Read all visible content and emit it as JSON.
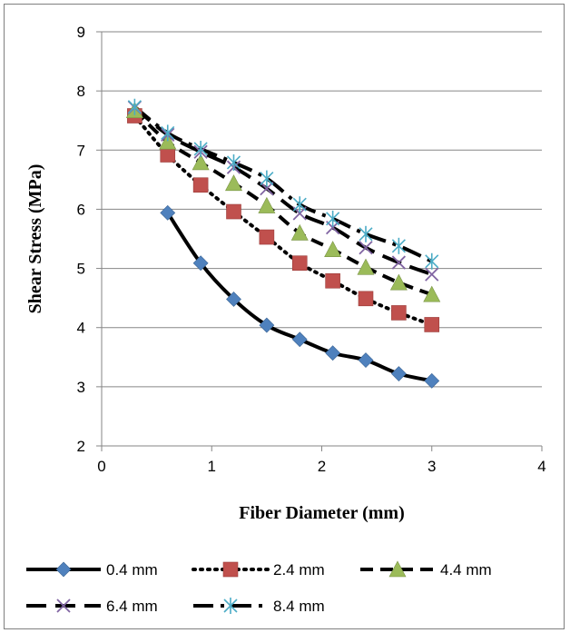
{
  "chart_data": {
    "type": "line",
    "title": "",
    "xlabel": "Fiber Diameter (mm)",
    "ylabel": "Shear Stress (MPa)",
    "xlim": [
      0,
      4
    ],
    "ylim": [
      2,
      9
    ],
    "x_ticks": [
      "0",
      "1",
      "2",
      "3",
      "4"
    ],
    "y_ticks": [
      "2",
      "3",
      "4",
      "5",
      "6",
      "7",
      "8",
      "9"
    ],
    "grid": "horizontal",
    "legend_position": "bottom",
    "series": [
      {
        "name": "0.4 mm",
        "color": "#4f81bd",
        "marker": "diamond",
        "dash": "solid",
        "x": [
          0.6,
          0.9,
          1.2,
          1.5,
          1.8,
          2.1,
          2.4,
          2.7,
          3.0
        ],
        "y": [
          5.94,
          5.09,
          4.48,
          4.04,
          3.8,
          3.57,
          3.45,
          3.22,
          3.1
        ]
      },
      {
        "name": "2.4 mm",
        "color": "#c0504d",
        "marker": "square",
        "dash": "dot",
        "x": [
          0.3,
          0.6,
          0.9,
          1.2,
          1.5,
          1.8,
          2.1,
          2.4,
          2.7,
          3.0
        ],
        "y": [
          7.58,
          6.92,
          6.41,
          5.96,
          5.53,
          5.09,
          4.79,
          4.49,
          4.25,
          4.05
        ]
      },
      {
        "name": "4.4 mm",
        "color": "#9bbb59",
        "marker": "triangle",
        "dash": "dash",
        "x": [
          0.3,
          0.6,
          0.9,
          1.2,
          1.5,
          1.8,
          2.1,
          2.4,
          2.7,
          3.0
        ],
        "y": [
          7.67,
          7.14,
          6.79,
          6.44,
          6.06,
          5.6,
          5.32,
          5.02,
          4.76,
          4.56
        ]
      },
      {
        "name": "6.4 mm",
        "color": "#8064a2",
        "marker": "x",
        "dash": "longdash",
        "x": [
          0.3,
          0.6,
          0.9,
          1.2,
          1.5,
          1.8,
          2.1,
          2.4,
          2.7,
          3.0
        ],
        "y": [
          7.72,
          7.26,
          6.97,
          6.71,
          6.35,
          5.93,
          5.69,
          5.35,
          5.1,
          4.9
        ]
      },
      {
        "name": "8.4 mm",
        "color": "#4bacc6",
        "marker": "asterisk",
        "dash": "dashdot",
        "x": [
          0.3,
          0.6,
          0.9,
          1.2,
          1.5,
          1.8,
          2.1,
          2.4,
          2.7,
          3.0
        ],
        "y": [
          7.73,
          7.29,
          7.02,
          6.79,
          6.52,
          6.08,
          5.84,
          5.58,
          5.38,
          5.12
        ]
      }
    ]
  }
}
